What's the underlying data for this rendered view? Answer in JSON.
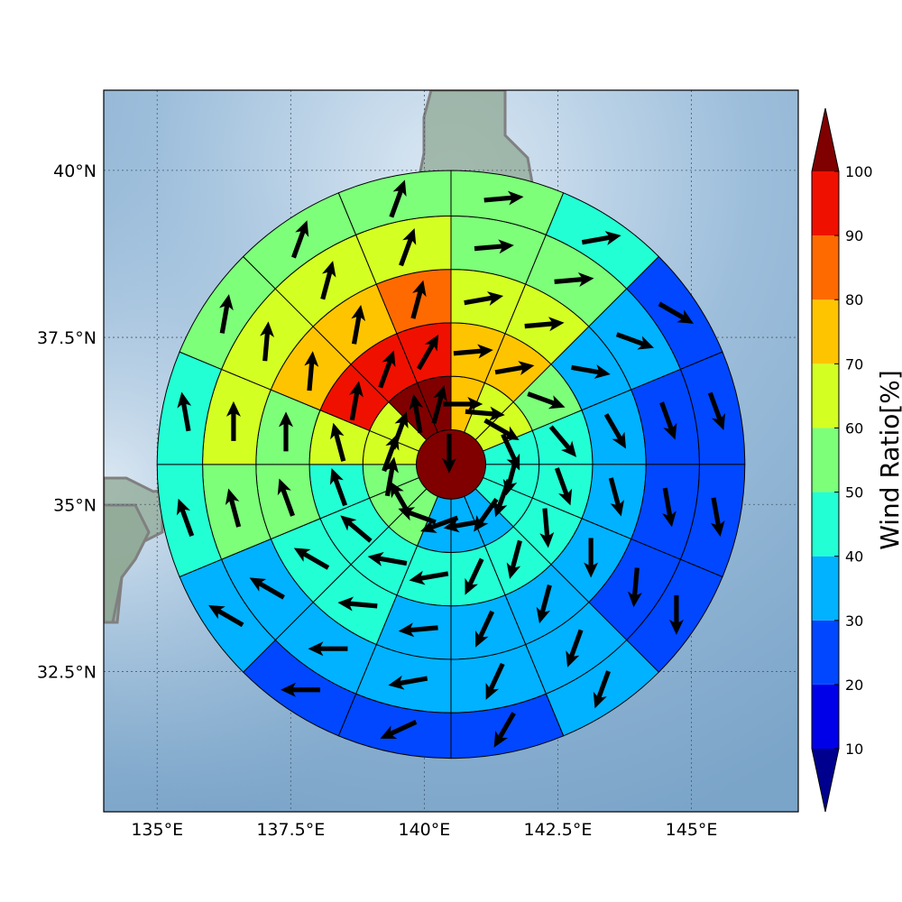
{
  "chart_data": {
    "type": "polar-sector-map",
    "map_extent": {
      "lon": [
        134.0,
        147.0
      ],
      "lat": [
        30.4,
        41.2
      ]
    },
    "center": {
      "lon": 140.5,
      "lat": 35.6
    },
    "rings_deg": [
      0.65,
      1.65,
      2.65,
      3.65,
      4.65,
      5.5
    ],
    "x_ticks": [
      135,
      137.5,
      140,
      142.5,
      145
    ],
    "x_tick_labels": [
      "135°E",
      "137.5°E",
      "140°E",
      "142.5°E",
      "145°E"
    ],
    "y_ticks": [
      32.5,
      35,
      37.5,
      40
    ],
    "y_tick_labels": [
      "32.5°N",
      "35°N",
      "37.5°N",
      "40°N"
    ],
    "grid": true,
    "colorbar": {
      "label": "Wind Ratio[%]",
      "levels": [
        10,
        20,
        30,
        40,
        50,
        60,
        70,
        80,
        90,
        100
      ],
      "tick_labels": [
        "10",
        "20",
        "30",
        "40",
        "50",
        "60",
        "70",
        "80",
        "90",
        "100"
      ],
      "colors": [
        "#00008f",
        "#0000e8",
        "#0047ff",
        "#00b2ff",
        "#23ffd4",
        "#7dff7a",
        "#d4ff23",
        "#ffc400",
        "#ff6a00",
        "#f01000",
        "#800000"
      ],
      "extend": "both"
    },
    "center_cell": {
      "value": 100,
      "dir": 180
    },
    "sectors": [
      {
        "ring": 1,
        "values": [
          75,
          68,
          65,
          48,
          48,
          48,
          35,
          35,
          35,
          55,
          55,
          55,
          62,
          62,
          100,
          100
        ]
      },
      {
        "ring": 2,
        "values": [
          78,
          78,
          55,
          42,
          42,
          45,
          40,
          40,
          40,
          45,
          45,
          45,
          62,
          92,
          92,
          92
        ]
      },
      {
        "ring": 3,
        "values": [
          62,
          62,
          38,
          38,
          35,
          35,
          35,
          35,
          35,
          42,
          42,
          58,
          58,
          72,
          72,
          82
        ]
      },
      {
        "ring": 4,
        "values": [
          52,
          52,
          35,
          24,
          24,
          28,
          38,
          36,
          36,
          38,
          38,
          55,
          62,
          62,
          68,
          68
        ]
      },
      {
        "ring": 5,
        "values": [
          55,
          45,
          22,
          22,
          22,
          22,
          38,
          22,
          22,
          22,
          35,
          45,
          45,
          52,
          52,
          52
        ]
      }
    ],
    "arrow_dirs": [
      [
        90,
        95,
        120,
        155,
        195,
        200,
        215,
        260,
        250,
        290,
        330,
        10,
        20,
        20,
        350,
        15
      ],
      [
        85,
        80,
        110,
        140,
        160,
        175,
        195,
        205,
        260,
        280,
        310,
        340,
        345,
        10,
        20,
        30
      ],
      [
        80,
        85,
        100,
        150,
        165,
        180,
        195,
        205,
        265,
        275,
        300,
        340,
        0,
        5,
        10,
        15
      ],
      [
        85,
        85,
        110,
        160,
        170,
        185,
        200,
        205,
        260,
        270,
        300,
        345,
        0,
        5,
        15,
        20
      ],
      [
        85,
        80,
        120,
        160,
        170,
        180,
        200,
        210,
        245,
        270,
        300,
        340,
        350,
        10,
        20,
        20
      ]
    ]
  }
}
